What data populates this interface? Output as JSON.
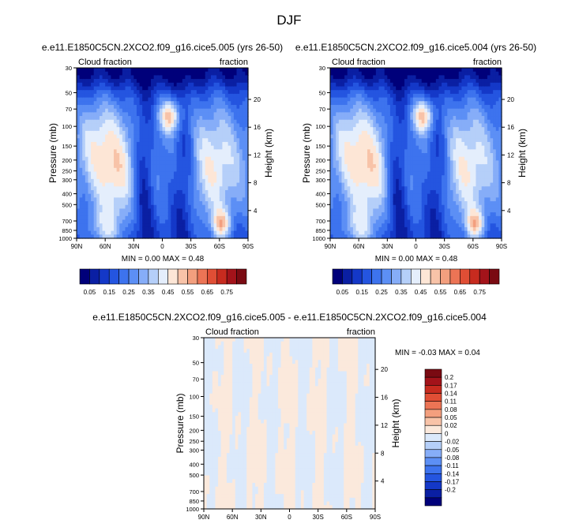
{
  "figure": {
    "title": "DJF"
  },
  "colors": {
    "top_scale": [
      "#00007a",
      "#0a1fa3",
      "#1438c8",
      "#2455e0",
      "#3d73ee",
      "#5c8ff5",
      "#86adf8",
      "#b5cff9",
      "#e4eefc",
      "#fde6d6",
      "#f8c3a8",
      "#f39f7e",
      "#ec7455",
      "#e04e35",
      "#c72b1f",
      "#a3131a",
      "#7a0a12"
    ],
    "diff_scale": [
      "#00007a",
      "#0a1fa3",
      "#1438c8",
      "#2455e0",
      "#3d73ee",
      "#5c8ff5",
      "#86adf8",
      "#b5cff9",
      "#dbe9fb",
      "#fbe9dc",
      "#f8c3a8",
      "#f39f7e",
      "#ec7455",
      "#e04e35",
      "#c72b1f",
      "#a3131a",
      "#7a0a12"
    ]
  },
  "chart_data": [
    {
      "type": "heatmap",
      "title": "e.e11.E1850C5CN.2XCO2.f09_g16.cice5.005 (yrs 26-50)",
      "left_label": "Cloud fraction",
      "right_label": "fraction",
      "ylabel": "Pressure (mb)",
      "y2label": "Height (km)",
      "x_ticks": [
        "90N",
        "60N",
        "30N",
        "0",
        "30S",
        "60S",
        "90S"
      ],
      "p_ticks": [
        30,
        50,
        70,
        100,
        150,
        200,
        250,
        300,
        400,
        500,
        700,
        850,
        1000
      ],
      "z_ticks": [
        4,
        8,
        12,
        16,
        20
      ],
      "xlim": [
        90,
        -90
      ],
      "ylim": [
        1000,
        30
      ],
      "stats": "MIN =  0.00  MAX =  0.48",
      "colorbar": {
        "orientation": "horizontal",
        "labels": [
          "0.05",
          "0.15",
          "0.25",
          "0.35",
          "0.45",
          "0.55",
          "0.65",
          "0.75"
        ],
        "levels": [
          0,
          0.05,
          0.1,
          0.15,
          0.2,
          0.25,
          0.3,
          0.35,
          0.4,
          0.45,
          0.5,
          0.55,
          0.6,
          0.65,
          0.7,
          0.75,
          0.8
        ]
      }
    },
    {
      "type": "heatmap",
      "title": "e.e11.E1850C5CN.2XCO2.f09_g16.cice5.004 (yrs 26-50)",
      "left_label": "Cloud fraction",
      "right_label": "fraction",
      "ylabel": "Pressure (mb)",
      "y2label": "Height (km)",
      "x_ticks": [
        "90N",
        "60N",
        "30N",
        "0",
        "30S",
        "60S",
        "90S"
      ],
      "p_ticks": [
        30,
        50,
        70,
        100,
        150,
        200,
        250,
        300,
        400,
        500,
        700,
        850,
        1000
      ],
      "z_ticks": [
        4,
        8,
        12,
        16,
        20
      ],
      "xlim": [
        90,
        -90
      ],
      "ylim": [
        1000,
        30
      ],
      "stats": "MIN =  0.00  MAX =  0.48",
      "colorbar": {
        "orientation": "horizontal",
        "labels": [
          "0.05",
          "0.15",
          "0.25",
          "0.35",
          "0.45",
          "0.55",
          "0.65",
          "0.75"
        ],
        "levels": [
          0,
          0.05,
          0.1,
          0.15,
          0.2,
          0.25,
          0.3,
          0.35,
          0.4,
          0.45,
          0.5,
          0.55,
          0.6,
          0.65,
          0.7,
          0.75,
          0.8
        ]
      }
    },
    {
      "type": "heatmap",
      "title": "e.e11.E1850C5CN.2XCO2.f09_g16.cice5.005 - e.e11.E1850C5CN.2XCO2.f09_g16.cice5.004",
      "left_label": "Cloud fraction",
      "right_label": "fraction",
      "ylabel": "Pressure (mb)",
      "y2label": "Height (km)",
      "x_ticks": [
        "90N",
        "60N",
        "30N",
        "0",
        "30S",
        "60S",
        "90S"
      ],
      "p_ticks": [
        30,
        50,
        70,
        100,
        150,
        200,
        250,
        300,
        400,
        500,
        700,
        850,
        1000
      ],
      "z_ticks": [
        4,
        8,
        12,
        16,
        20
      ],
      "xlim": [
        90,
        -90
      ],
      "ylim": [
        1000,
        30
      ],
      "stats": "MIN = -0.03  MAX =   0.04",
      "colorbar": {
        "orientation": "vertical",
        "labels": [
          "0.2",
          "0.17",
          "0.14",
          "0.11",
          "0.08",
          "0.05",
          "0.02",
          "0",
          "-0.02",
          "-0.05",
          "-0.08",
          "-0.11",
          "-0.14",
          "-0.17",
          "-0.2"
        ]
      }
    }
  ]
}
